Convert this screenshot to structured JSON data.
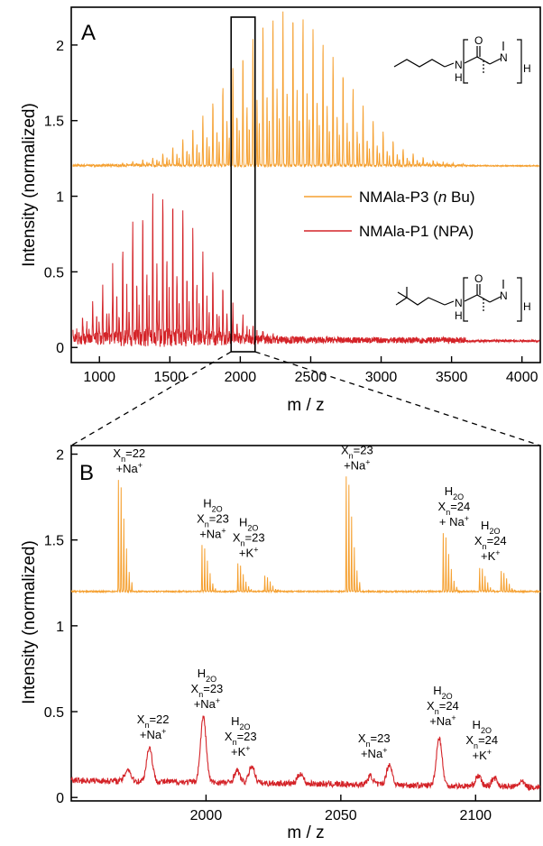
{
  "chart_data": [
    {
      "type": "line",
      "panel_label": "A",
      "xlabel": "m / z",
      "ylabel": "Intensity (normalized)",
      "xlim": [
        800,
        4130
      ],
      "ylim": [
        -0.1,
        2.25
      ],
      "xticks": [
        1000,
        1500,
        2000,
        2500,
        3000,
        3500,
        4000
      ],
      "yticks": [
        0,
        0.5,
        1,
        1.5,
        2
      ],
      "ytick_labels": [
        "0",
        "0.5",
        "1",
        "1.5",
        "2"
      ],
      "grid": false,
      "legend_position": "right",
      "zoom_box_x": [
        1935,
        2105
      ],
      "series": [
        {
          "name": "NMAla-P3 (n Bu)",
          "legend_text": "NMAla-P3 (",
          "legend_italic": "n",
          "legend_suffix": " Bu)",
          "color": "#f5a030",
          "baseline": 1.2,
          "peak_spacing": 71.1,
          "peak_start": 810,
          "peak_end": 4060,
          "envelope_center": 2330,
          "envelope_width": 560,
          "envelope_max": 1.02,
          "max_intensity_points": [
            [
              2340,
              2.2
            ],
            [
              2480,
              2.15
            ],
            [
              2260,
              2.1
            ]
          ]
        },
        {
          "name": "NMAla-P1 (NPA)",
          "legend_text": "NMAla-P1 (NPA)",
          "color": "#d42328",
          "baseline": 0.04,
          "peak_spacing": 71.1,
          "peak_start": 810,
          "peak_end": 4060,
          "envelope_center": 1450,
          "envelope_width": 420,
          "envelope_max": 0.96,
          "max_intensity_points": [
            [
              1410,
              1.0
            ],
            [
              1490,
              0.98
            ],
            [
              1550,
              0.9
            ]
          ]
        }
      ]
    },
    {
      "type": "line",
      "panel_label": "B",
      "xlabel": "m / z",
      "ylabel": "Intensity (normalized)",
      "xlim": [
        1950,
        2124
      ],
      "ylim": [
        -0.02,
        2.05
      ],
      "xticks": [
        2000,
        2050,
        2100
      ],
      "yticks": [
        0,
        0.5,
        1,
        1.5,
        2
      ],
      "ytick_labels": [
        "0",
        "0.5",
        "1",
        "1.5",
        "2"
      ],
      "grid": false,
      "series": [
        {
          "name": "NMAla-P3 (n Bu)",
          "color": "#f5a030",
          "baseline": 1.2,
          "peaks": [
            {
              "x": 1967.5,
              "y": 1.85
            },
            {
              "x": 1998.5,
              "y": 1.47
            },
            {
              "x": 2011.8,
              "y": 1.36
            },
            {
              "x": 2021.8,
              "y": 1.29
            },
            {
              "x": 2052.0,
              "y": 1.87
            },
            {
              "x": 2088.0,
              "y": 1.54
            },
            {
              "x": 2101.5,
              "y": 1.34
            },
            {
              "x": 2109.5,
              "y": 1.32
            }
          ]
        },
        {
          "name": "NMAla-P1 (NPA)",
          "color": "#d42328",
          "baseline": 0.1,
          "peaks": [
            {
              "x": 1971.0,
              "y": 0.17
            },
            {
              "x": 1979.0,
              "y": 0.3
            },
            {
              "x": 1999.0,
              "y": 0.48
            },
            {
              "x": 2011.5,
              "y": 0.17
            },
            {
              "x": 2017.0,
              "y": 0.2
            },
            {
              "x": 2035.0,
              "y": 0.16
            },
            {
              "x": 2061.0,
              "y": 0.15
            },
            {
              "x": 2068.0,
              "y": 0.22
            },
            {
              "x": 2086.5,
              "y": 0.38
            },
            {
              "x": 2101.0,
              "y": 0.16
            },
            {
              "x": 2107.0,
              "y": 0.15
            },
            {
              "x": 2117.0,
              "y": 0.13
            }
          ]
        }
      ],
      "annotations": [
        {
          "series": "orange",
          "x": 1967.5,
          "y": 1.85,
          "lines": [
            "X_n=22",
            "+Na^+"
          ]
        },
        {
          "series": "orange",
          "x": 1998.5,
          "y": 1.47,
          "lines": [
            "H_2O",
            "X_n=23",
            "+Na^+"
          ]
        },
        {
          "series": "orange",
          "x": 2011.8,
          "y": 1.36,
          "lines": [
            "H_2O",
            "X_n=23",
            "+K^+"
          ]
        },
        {
          "series": "orange",
          "x": 2052.0,
          "y": 1.87,
          "lines": [
            "X_n=23",
            "+Na^+"
          ]
        },
        {
          "series": "orange",
          "x": 2088.0,
          "y": 1.54,
          "lines": [
            "H_2O",
            "X_n=24",
            "+ Na^+"
          ]
        },
        {
          "series": "orange",
          "x": 2101.5,
          "y": 1.34,
          "lines": [
            "H_2O",
            "X_n=24",
            "+K^+"
          ]
        },
        {
          "series": "red",
          "x": 1979.0,
          "y": 0.3,
          "lines": [
            "X_n=22",
            "+Na^+"
          ]
        },
        {
          "series": "red",
          "x": 1999.0,
          "y": 0.48,
          "lines": [
            "H_2O",
            "X_n=23",
            "+Na^+"
          ]
        },
        {
          "series": "red",
          "x": 2011.5,
          "y": 0.2,
          "lines": [
            "H_2O",
            "X_n=23",
            "+K^+"
          ]
        },
        {
          "series": "red",
          "x": 2061.0,
          "y": 0.19,
          "lines": [
            "X_n=23",
            "+Na^+"
          ]
        },
        {
          "series": "red",
          "x": 2086.5,
          "y": 0.38,
          "lines": [
            "H_2O",
            "X_n=24",
            "+Na^+"
          ]
        },
        {
          "series": "red",
          "x": 2101.0,
          "y": 0.18,
          "lines": [
            "H_2O",
            "X_n=24",
            "+K^+"
          ]
        }
      ]
    }
  ],
  "structures": {
    "top": {
      "atoms": [
        "O",
        "N",
        "H",
        "N",
        "H"
      ]
    },
    "bottom": {
      "atoms": [
        "O",
        "N",
        "H",
        "N",
        "H"
      ]
    }
  }
}
